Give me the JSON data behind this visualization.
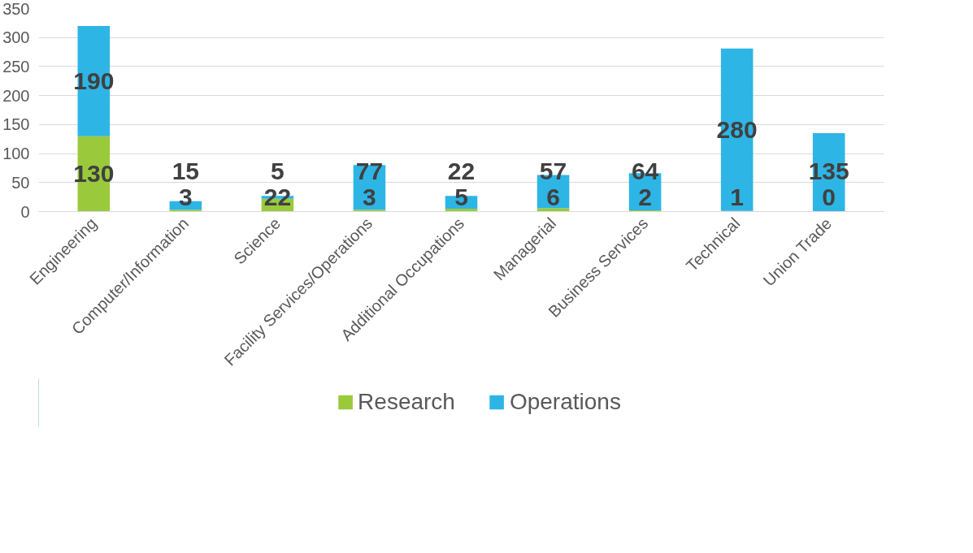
{
  "chart_data": {
    "type": "bar",
    "stacked": true,
    "categories": [
      "Engineering",
      "Computer/Information",
      "Science",
      "Facility Services/Operations",
      "Additional Occupations",
      "Managerial",
      "Business Services",
      "Technical",
      "Union Trade"
    ],
    "series": [
      {
        "name": "Research",
        "color": "#9aca3c",
        "values": [
          130,
          3,
          22,
          3,
          5,
          6,
          2,
          1,
          0
        ]
      },
      {
        "name": "Operations",
        "color": "#2db5e5",
        "values": [
          190,
          15,
          5,
          77,
          22,
          57,
          64,
          280,
          135
        ]
      }
    ],
    "ylim": [
      0,
      350
    ],
    "yticks": [
      0,
      50,
      100,
      150,
      200,
      250,
      300,
      350
    ],
    "grid": "y",
    "legend": "bottom",
    "data_labels": true
  }
}
